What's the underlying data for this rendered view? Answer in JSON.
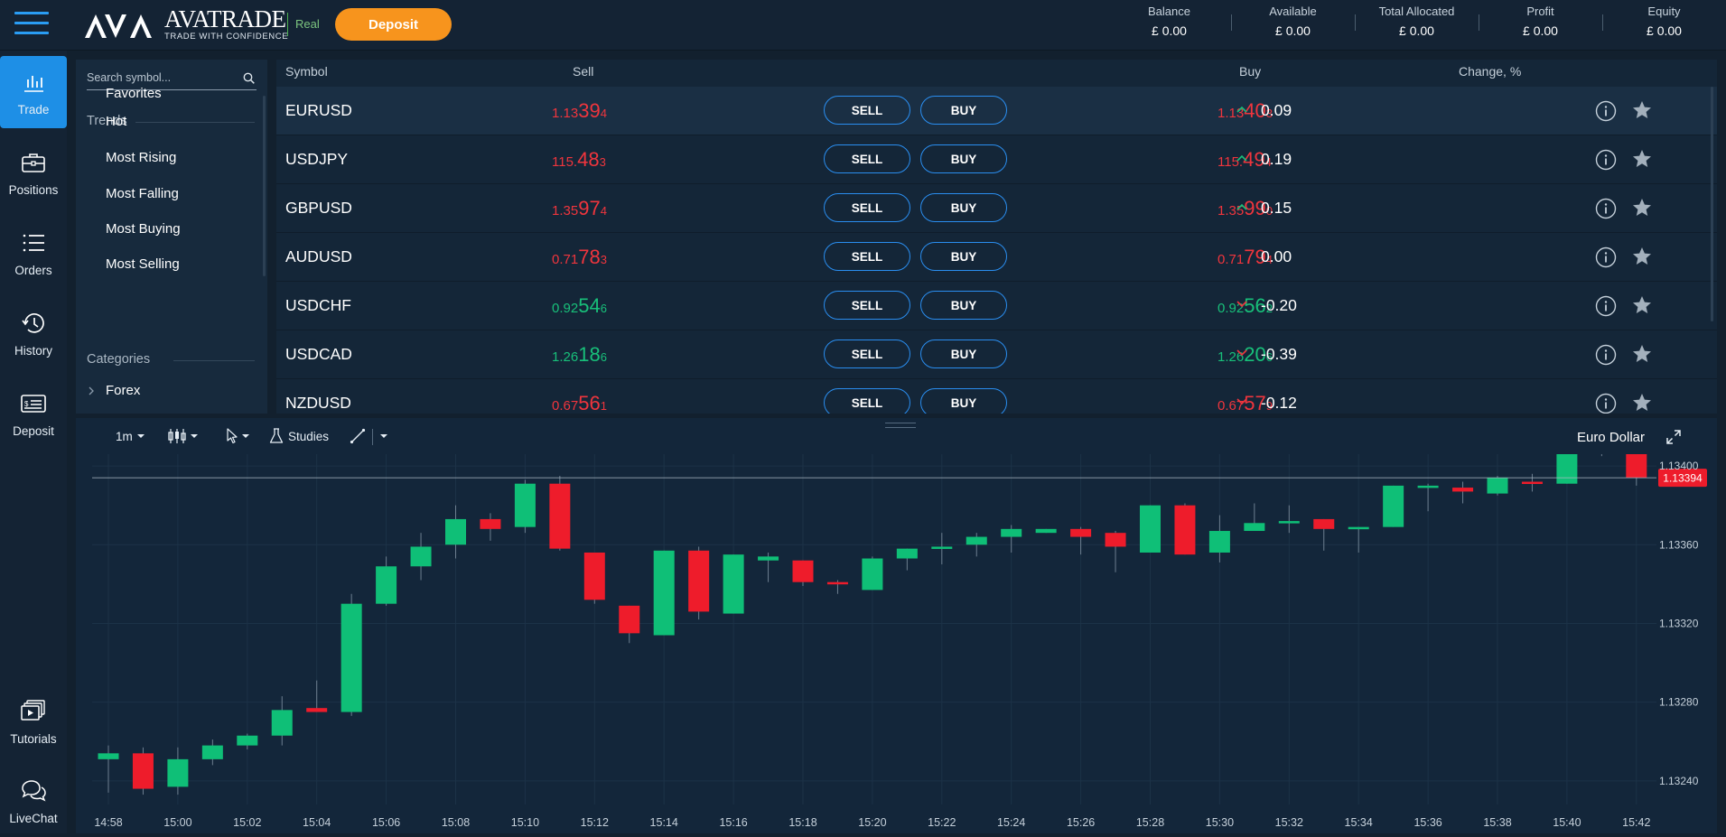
{
  "header": {
    "logo_name": "AVATRADE",
    "logo_tagline": "TRADE WITH CONFIDENCE",
    "account_mode": "Real",
    "deposit_label": "Deposit",
    "stats": [
      {
        "label": "Balance",
        "value": "£ 0.00"
      },
      {
        "label": "Available",
        "value": "£ 0.00"
      },
      {
        "label": "Total Allocated",
        "value": "£ 0.00"
      },
      {
        "label": "Profit",
        "value": "£ 0.00"
      },
      {
        "label": "Equity",
        "value": "£ 0.00"
      }
    ]
  },
  "nav": [
    {
      "label": "Trade",
      "icon": "bar-chart-icon",
      "active": true
    },
    {
      "label": "Positions",
      "icon": "briefcase-icon"
    },
    {
      "label": "Orders",
      "icon": "list-icon"
    },
    {
      "label": "History",
      "icon": "history-icon"
    },
    {
      "label": "Deposit",
      "icon": "deposit-card-icon"
    },
    {
      "label": "Tutorials",
      "icon": "tutorials-icon"
    },
    {
      "label": "LiveChat",
      "icon": "chat-icon"
    }
  ],
  "sidebar": {
    "search_placeholder": "Search symbol...",
    "favorites": "Favorites",
    "trends_heading": "Trends",
    "trends": [
      "Hot",
      "Most Rising",
      "Most Falling",
      "Most Buying",
      "Most Selling"
    ],
    "categories_heading": "Categories",
    "categories": [
      "Forex"
    ]
  },
  "table": {
    "headers": {
      "symbol": "Symbol",
      "sell": "Sell",
      "buy": "Buy",
      "change": "Change, %"
    },
    "sell_label": "SELL",
    "buy_label": "BUY",
    "rows": [
      {
        "symbol": "EURUSD",
        "sell": [
          "1.13",
          "39",
          "4"
        ],
        "buy": [
          "1.13",
          "40",
          "3"
        ],
        "color": "red",
        "change": "0.09",
        "dir": "up"
      },
      {
        "symbol": "USDJPY",
        "sell": [
          "115.",
          "48",
          "3"
        ],
        "buy": [
          "115.",
          "49",
          "4"
        ],
        "color": "red",
        "change": "0.19",
        "dir": "up"
      },
      {
        "symbol": "GBPUSD",
        "sell": [
          "1.35",
          "97",
          "4"
        ],
        "buy": [
          "1.35",
          "99",
          "0"
        ],
        "color": "red",
        "change": "0.15",
        "dir": "up"
      },
      {
        "symbol": "AUDUSD",
        "sell": [
          "0.71",
          "78",
          "3"
        ],
        "buy": [
          "0.71",
          "79",
          "4"
        ],
        "color": "red",
        "change": "0.00",
        "dir": "none"
      },
      {
        "symbol": "USDCHF",
        "sell": [
          "0.92",
          "54",
          "6"
        ],
        "buy": [
          "0.92",
          "56",
          "2"
        ],
        "color": "green",
        "change": "-0.20",
        "dir": "down"
      },
      {
        "symbol": "USDCAD",
        "sell": [
          "1.26",
          "18",
          "6"
        ],
        "buy": [
          "1.26",
          "20",
          "6"
        ],
        "color": "green",
        "change": "-0.39",
        "dir": "down"
      },
      {
        "symbol": "NZDUSD",
        "sell": [
          "0.67",
          "56",
          "1"
        ],
        "buy": [
          "0.67",
          "57",
          "9"
        ],
        "color": "red",
        "change": "-0.12",
        "dir": "down"
      }
    ]
  },
  "chart_toolbar": {
    "interval": "1m",
    "studies": "Studies",
    "title": "Euro Dollar"
  },
  "chart_data": {
    "type": "candlestick",
    "title": "Euro Dollar",
    "interval": "1m",
    "x": [
      "14:58",
      "14:59",
      "15:00",
      "15:01",
      "15:02",
      "15:03",
      "15:04",
      "15:05",
      "15:06",
      "15:07",
      "15:08",
      "15:09",
      "15:10",
      "15:11",
      "15:12",
      "15:13",
      "15:14",
      "15:15",
      "15:16",
      "15:17",
      "15:18",
      "15:19",
      "15:20",
      "15:21",
      "15:22",
      "15:23",
      "15:24",
      "15:25",
      "15:26",
      "15:27",
      "15:28",
      "15:29",
      "15:30",
      "15:31",
      "15:32",
      "15:33",
      "15:34",
      "15:35",
      "15:36",
      "15:37",
      "15:38",
      "15:39",
      "15:40",
      "15:41",
      "15:42"
    ],
    "xticks": [
      "14:58",
      "15:00",
      "15:02",
      "15:04",
      "15:06",
      "15:08",
      "15:10",
      "15:12",
      "15:14",
      "15:16",
      "15:18",
      "15:20",
      "15:22",
      "15:24",
      "15:26",
      "15:28",
      "15:30",
      "15:32",
      "15:34",
      "15:36",
      "15:38",
      "15:40",
      "15:42"
    ],
    "yticks": [
      "1.13240",
      "1.13280",
      "1.13320",
      "1.13360",
      "1.13400"
    ],
    "ylim": [
      1.13228,
      1.13406
    ],
    "last_price": "1.13394",
    "last_price_value": 1.13394,
    "candles": [
      [
        1.13251,
        1.13254,
        1.13234,
        1.13258
      ],
      [
        1.13254,
        1.13236,
        1.13233,
        1.13257
      ],
      [
        1.13237,
        1.13251,
        1.13233,
        1.13257
      ],
      [
        1.13251,
        1.13258,
        1.13248,
        1.13261
      ],
      [
        1.13258,
        1.13263,
        1.13256,
        1.13264
      ],
      [
        1.13263,
        1.13276,
        1.13258,
        1.13283
      ],
      [
        1.13277,
        1.13275,
        1.13275,
        1.13291
      ],
      [
        1.13275,
        1.1333,
        1.13273,
        1.13335
      ],
      [
        1.1333,
        1.13349,
        1.13329,
        1.13354
      ],
      [
        1.13349,
        1.13359,
        1.13342,
        1.13366
      ],
      [
        1.1336,
        1.13373,
        1.13353,
        1.1338
      ],
      [
        1.13373,
        1.13368,
        1.13362,
        1.13376
      ],
      [
        1.13369,
        1.13391,
        1.13366,
        1.13393
      ],
      [
        1.13391,
        1.13358,
        1.13357,
        1.13395
      ],
      [
        1.13356,
        1.13332,
        1.1333,
        1.13356
      ],
      [
        1.13329,
        1.13315,
        1.1331,
        1.13329
      ],
      [
        1.13314,
        1.13357,
        1.13314,
        1.13357
      ],
      [
        1.13357,
        1.13326,
        1.13322,
        1.13359
      ],
      [
        1.13325,
        1.13355,
        1.13325,
        1.13355
      ],
      [
        1.13352,
        1.13354,
        1.13341,
        1.13356
      ],
      [
        1.13352,
        1.13341,
        1.13339,
        1.13352
      ],
      [
        1.13341,
        1.1334,
        1.13335,
        1.13342
      ],
      [
        1.13337,
        1.13353,
        1.13337,
        1.13354
      ],
      [
        1.13353,
        1.13358,
        1.13347,
        1.13358
      ],
      [
        1.13358,
        1.13359,
        1.1335,
        1.13366
      ],
      [
        1.1336,
        1.13364,
        1.13354,
        1.13366
      ],
      [
        1.13364,
        1.13368,
        1.13356,
        1.1337
      ],
      [
        1.13366,
        1.13368,
        1.13366,
        1.13368
      ],
      [
        1.13368,
        1.13364,
        1.13355,
        1.13369
      ],
      [
        1.13366,
        1.13359,
        1.13346,
        1.13367
      ],
      [
        1.13356,
        1.1338,
        1.13356,
        1.1338
      ],
      [
        1.1338,
        1.13355,
        1.13355,
        1.13381
      ],
      [
        1.13356,
        1.13367,
        1.13351,
        1.13375
      ],
      [
        1.13367,
        1.13371,
        1.13367,
        1.13381
      ],
      [
        1.13371,
        1.13372,
        1.13366,
        1.1338
      ],
      [
        1.13373,
        1.13368,
        1.13357,
        1.13373
      ],
      [
        1.13368,
        1.13369,
        1.13356,
        1.13369
      ],
      [
        1.13369,
        1.1339,
        1.13369,
        1.1339
      ],
      [
        1.1339,
        1.1339,
        1.13377,
        1.13391
      ],
      [
        1.13389,
        1.13387,
        1.13381,
        1.13392
      ],
      [
        1.13386,
        1.13394,
        1.13385,
        1.13395
      ],
      [
        1.13392,
        1.13391,
        1.13387,
        1.13396
      ],
      [
        1.13391,
        1.13408,
        1.13391,
        1.13409
      ],
      [
        1.13408,
        1.13407,
        1.13405,
        1.1341
      ],
      [
        1.13408,
        1.13394,
        1.1339,
        1.1341
      ]
    ],
    "grid": true,
    "colors": {
      "up": "#0fbf77",
      "down": "#ee1c2b",
      "background": "#13263a"
    }
  }
}
